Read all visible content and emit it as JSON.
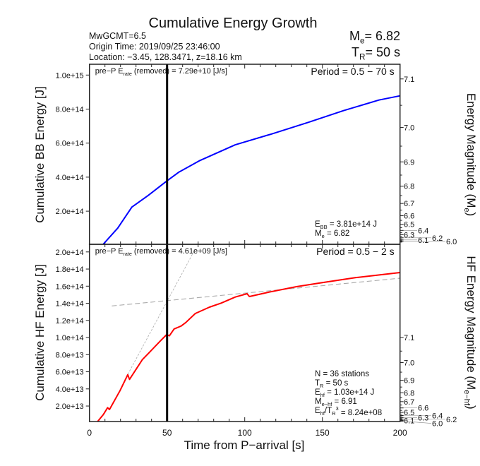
{
  "title": "Cumulative Energy Growth",
  "header": {
    "line1": "MwGCMT=6.5",
    "line2": "Origin Time: 2019/09/25 23:46:00",
    "line3": "Location: −3.45, 128.3471, z=18.16 km",
    "me_summary": [
      {
        "t": "M"
      },
      {
        "t": "e",
        "sub": true
      },
      {
        "t": "= 6.82"
      }
    ],
    "tr_summary": [
      {
        "t": "T"
      },
      {
        "t": "R",
        "sub": true
      },
      {
        "t": "= 50 s"
      }
    ]
  },
  "colors": {
    "bb": "#0000ff",
    "hf": "#ff0000",
    "fit": "#aaaaaa",
    "marker": "#000000"
  },
  "chart_data": [
    {
      "type": "line",
      "panel": "top",
      "ylabel": "Cumulative BB Energy [J]",
      "y2label": [
        {
          "t": "Energy Magnitude (M"
        },
        {
          "t": "e",
          "sub": true
        },
        {
          "t": ")"
        }
      ],
      "ylim": [
        0,
        1060000000000000.0
      ],
      "xlim": [
        0,
        200
      ],
      "yticks": [
        200000000000000.0,
        400000000000000.0,
        600000000000000.0,
        800000000000000.0,
        1000000000000000.0
      ],
      "ytick_labels": [
        "2.0e+14",
        "4.0e+14",
        "6.0e+14",
        "8.0e+14",
        "1.0e+15"
      ],
      "y2_ticks": [
        "7.1",
        "7.0",
        "6.9",
        "6.8",
        "6.7",
        "6.6",
        "6.5",
        "6.4",
        "6.3",
        "6.2",
        "6.1",
        "6.0"
      ],
      "annotation_rate": [
        {
          "t": "pre−P E"
        },
        {
          "t": "rate",
          "sub": true
        },
        {
          "t": " (removed) = 7.29e+10 [J/s]"
        }
      ],
      "period": "Period = 0.5 − 70 s",
      "stats": [
        [
          {
            "t": "E"
          },
          {
            "t": "BB",
            "sub": true
          },
          {
            "t": " = 3.81e+14 J"
          }
        ],
        [
          {
            "t": "M"
          },
          {
            "t": "e",
            "sub": true
          },
          {
            "t": " = 6.82"
          }
        ]
      ],
      "marker_x": 50,
      "series": [
        {
          "x": [
            8.3,
            18.2,
            27.3,
            37.9,
            49.2,
            57.5,
            71.2,
            93.9,
            118.2,
            140.9,
            163.6,
            186.4,
            200
          ],
          "y": [
            0,
            100000000000000.0,
            224000000000000.0,
            293000000000000.0,
            373000000000000.0,
            429000000000000.0,
            498000000000000.0,
            590000000000000.0,
            656000000000000.0,
            722000000000000.0,
            791000000000000.0,
            853000000000000.0,
            878000000000000.0
          ]
        }
      ]
    },
    {
      "type": "line",
      "panel": "bottom",
      "ylabel": "Cumulative HF Energy [J]",
      "y2label": [
        {
          "t": "HF Energy Magnitude (M"
        },
        {
          "t": "e−hf",
          "sub": true
        },
        {
          "t": ")"
        }
      ],
      "xlabel": "Time from P−arrival [s]",
      "ylim": [
        2000000000000.0,
        209000000000000.0
      ],
      "xlim": [
        0,
        200
      ],
      "xticks": [
        0,
        50,
        100,
        150,
        200
      ],
      "xtick_labels": [
        "0",
        "50",
        "100",
        "150",
        "200"
      ],
      "yticks": [
        20000000000000.0,
        40000000000000.0,
        60000000000000.0,
        80000000000000.0,
        100000000000000.0,
        120000000000000.0,
        140000000000000.0,
        160000000000000.0,
        180000000000000.0,
        200000000000000.0
      ],
      "ytick_labels": [
        "2.0e+13",
        "4.0e+13",
        "6.0e+13",
        "8.0e+13",
        "1.0e+14",
        "1.2e+14",
        "1.4e+14",
        "1.6e+14",
        "1.8e+14",
        "2.0e+14"
      ],
      "y2_ticks": [
        "7.1",
        "7.0",
        "6.9",
        "6.8",
        "6.7",
        "6.6",
        "6.5",
        "6.4",
        "6.3",
        "6.2",
        "6.1",
        "6.0"
      ],
      "annotation_rate": [
        {
          "t": "pre−P E"
        },
        {
          "t": "rate",
          "sub": true
        },
        {
          "t": " (removed) = 4.61e+09 [J/s]"
        }
      ],
      "period": "Period = 0.5 − 2 s",
      "stats": [
        [
          {
            "t": "N = 36 stations"
          }
        ],
        [
          {
            "t": "T"
          },
          {
            "t": "R",
            "sub": true
          },
          {
            "t": " = 50  s"
          }
        ],
        [
          {
            "t": "E"
          },
          {
            "t": "hf",
            "sub": true
          },
          {
            "t": " = 1.03e+14 J"
          }
        ],
        [
          {
            "t": "M"
          },
          {
            "t": "e−hf",
            "sub": true
          },
          {
            "t": " = 6.91"
          }
        ],
        [
          {
            "t": "E"
          },
          {
            "t": "hf",
            "sub": true
          },
          {
            "t": "/T"
          },
          {
            "t": "R",
            "sub": true
          },
          {
            "t": "3",
            "sup": true
          },
          {
            "t": " =  8.24e+08"
          }
        ]
      ],
      "marker_x": 50,
      "series": [
        {
          "x": [
            5.3,
            9.1,
            11.7,
            12.9,
            19.7,
            24.7,
            25.8,
            34.1,
            37.9,
            46.2,
            49.7,
            51.5,
            54.5,
            59.1,
            62.1,
            68.2,
            77.3,
            84.8,
            93.9,
            101.5,
            103,
            115.1,
            133.3,
            148.5,
            171.2,
            200
          ],
          "y": [
            2000000000000.0,
            10400000000000.0,
            18100000000000.0,
            15900000000000.0,
            37900000000000.0,
            56600000000000.0,
            51100000000000.0,
            74200000000000.0,
            81300000000000.0,
            97000000000000.0,
            103300000000000.0,
            102000000000000.0,
            110000000000000.0,
            113500000000000.0,
            117600000000000.0,
            128100000000000.0,
            135500000000000.0,
            140200000000000.0,
            147300000000000.0,
            151200000000000.0,
            147900000000000.0,
            152800000000000.0,
            159400000000000.0,
            163800000000000.0,
            169900000000000.0,
            175900000000000.0
          ]
        }
      ],
      "fit_lines": [
        {
          "x": [
            14.4,
            200
          ],
          "y": [
            136900000000000.0,
            169300000000000.0
          ],
          "style": "dashed"
        },
        {
          "x": [
            24.7,
            67.4
          ],
          "y": [
            57000000000000.0,
            201000000000000.0
          ],
          "style": "dotted"
        }
      ]
    }
  ]
}
